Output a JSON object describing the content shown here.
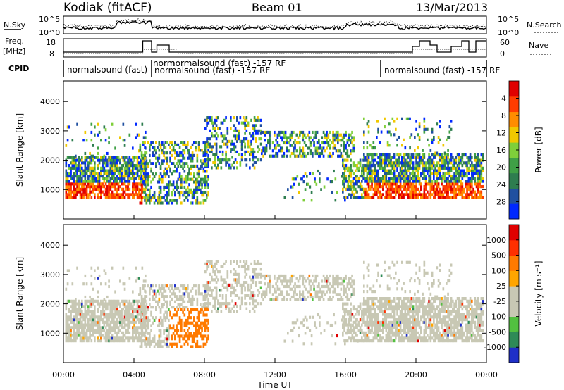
{
  "header": {
    "station": "Kodiak (fitACF)",
    "beam": "Beam 01",
    "date": "13/Mar/2013"
  },
  "noise_panel": {
    "left_label": "N.Sky",
    "right_label": "N.Search",
    "y_ticks": [
      "10^5",
      "10^0"
    ]
  },
  "freq_panel": {
    "left_label_1": "Freq.",
    "left_label_2": "[MHz]",
    "right_label": "Nave",
    "left_ticks": [
      "18",
      "8"
    ],
    "right_ticks": [
      "60",
      "0"
    ]
  },
  "cpid_panel": {
    "label": "CPID",
    "segments": [
      {
        "start": "00:00",
        "text": "normalsound (fast)"
      },
      {
        "start": "05:00",
        "text": "norm"
      },
      {
        "start": "05:20",
        "text": "normalsound (fast) -157 RF"
      },
      {
        "start": "05:10",
        "text": "normalsound (fast) -157 RF"
      },
      {
        "start": "18:00",
        "text": "normalsound (fast) -157 RF"
      }
    ]
  },
  "colors": {
    "power_scale": [
      "#0028ff",
      "#2050a0",
      "#2e7d4f",
      "#3fa046",
      "#7fcf3a",
      "#f0c800",
      "#ff8c00",
      "#ff3c00",
      "#e00000"
    ],
    "velocity_scale": [
      "#1f2fc8",
      "#2e8b57",
      "#52c040",
      "#c8c8b4",
      "#c8c8b4",
      "#ffa500",
      "#ff7a00",
      "#ff3000",
      "#e00000"
    ]
  },
  "chart_data": [
    {
      "type": "heatmap",
      "name": "power",
      "xlabel": "",
      "ylabel": "Slant Range [km]",
      "ylim": [
        0,
        4700
      ],
      "xlim": [
        "00:00",
        "24:00"
      ],
      "y_ticks": [
        1000,
        2000,
        3000,
        4000
      ],
      "colorbar_label": "Power [dB]",
      "colorbar_ticks": [
        4,
        8,
        12,
        16,
        20,
        24,
        28
      ]
    },
    {
      "type": "heatmap",
      "name": "velocity",
      "xlabel": "Time UT",
      "ylabel": "Slant Range [km]",
      "ylim": [
        0,
        4700
      ],
      "xlim": [
        "00:00",
        "24:00"
      ],
      "x_ticks": [
        "00:00",
        "04:00",
        "08:00",
        "12:00",
        "16:00",
        "20:00",
        "00:00"
      ],
      "y_ticks": [
        1000,
        2000,
        3000,
        4000
      ],
      "colorbar_label": "Velocity [m s⁻¹]",
      "colorbar_ticks": [
        1000,
        500,
        100,
        25,
        -25,
        -100,
        -500,
        -1000
      ]
    }
  ]
}
